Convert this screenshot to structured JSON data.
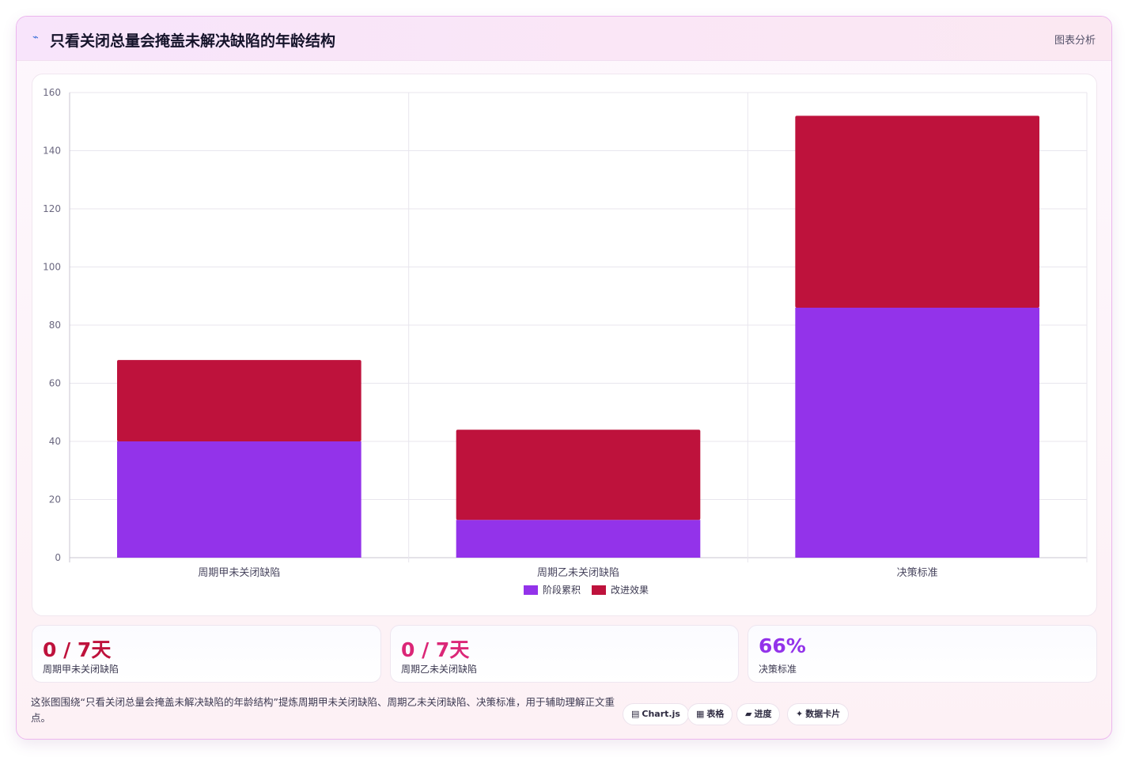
{
  "header": {
    "title": "只看关闭总量会掩盖未解决缺陷的年龄结构",
    "tag": "图表分析",
    "logo_icon": "sparkle-icon"
  },
  "chart_data": {
    "type": "bar",
    "stacked": true,
    "categories": [
      "周期甲未关闭缺陷",
      "周期乙未关闭缺陷",
      "决策标准"
    ],
    "series": [
      {
        "name": "阶段累积",
        "color": "#9333ea",
        "values": [
          40,
          13,
          86
        ]
      },
      {
        "name": "改进效果",
        "color": "#be123c",
        "values": [
          28,
          31,
          66
        ]
      }
    ],
    "ylim": [
      0,
      160
    ],
    "yticks": [
      0,
      20,
      40,
      60,
      80,
      100,
      120,
      140,
      160
    ],
    "grid": true,
    "legend": "bottom"
  },
  "kpis": [
    {
      "value": "0 / 7天",
      "label": "周期甲未关闭缺陷",
      "color": "#be123c"
    },
    {
      "value": "0 / 7天",
      "label": "周期乙未关闭缺陷",
      "color": "#db2777"
    },
    {
      "value": "66%",
      "label": "决策标准",
      "color": "#9333ea"
    }
  ],
  "footer": {
    "text": "这张图围绕“只看关闭总量会掩盖未解决缺陷的年龄结构”提炼周期甲未关闭缺陷、周期乙未关闭缺陷、决策标准，用于辅助理解正文重点。",
    "chips": [
      {
        "icon": "▤",
        "label": "Chart.js"
      },
      {
        "icon": "▦",
        "label": "表格"
      },
      {
        "icon": "▰",
        "label": "进度"
      },
      {
        "icon": "✦",
        "label": "数据卡片"
      }
    ]
  }
}
